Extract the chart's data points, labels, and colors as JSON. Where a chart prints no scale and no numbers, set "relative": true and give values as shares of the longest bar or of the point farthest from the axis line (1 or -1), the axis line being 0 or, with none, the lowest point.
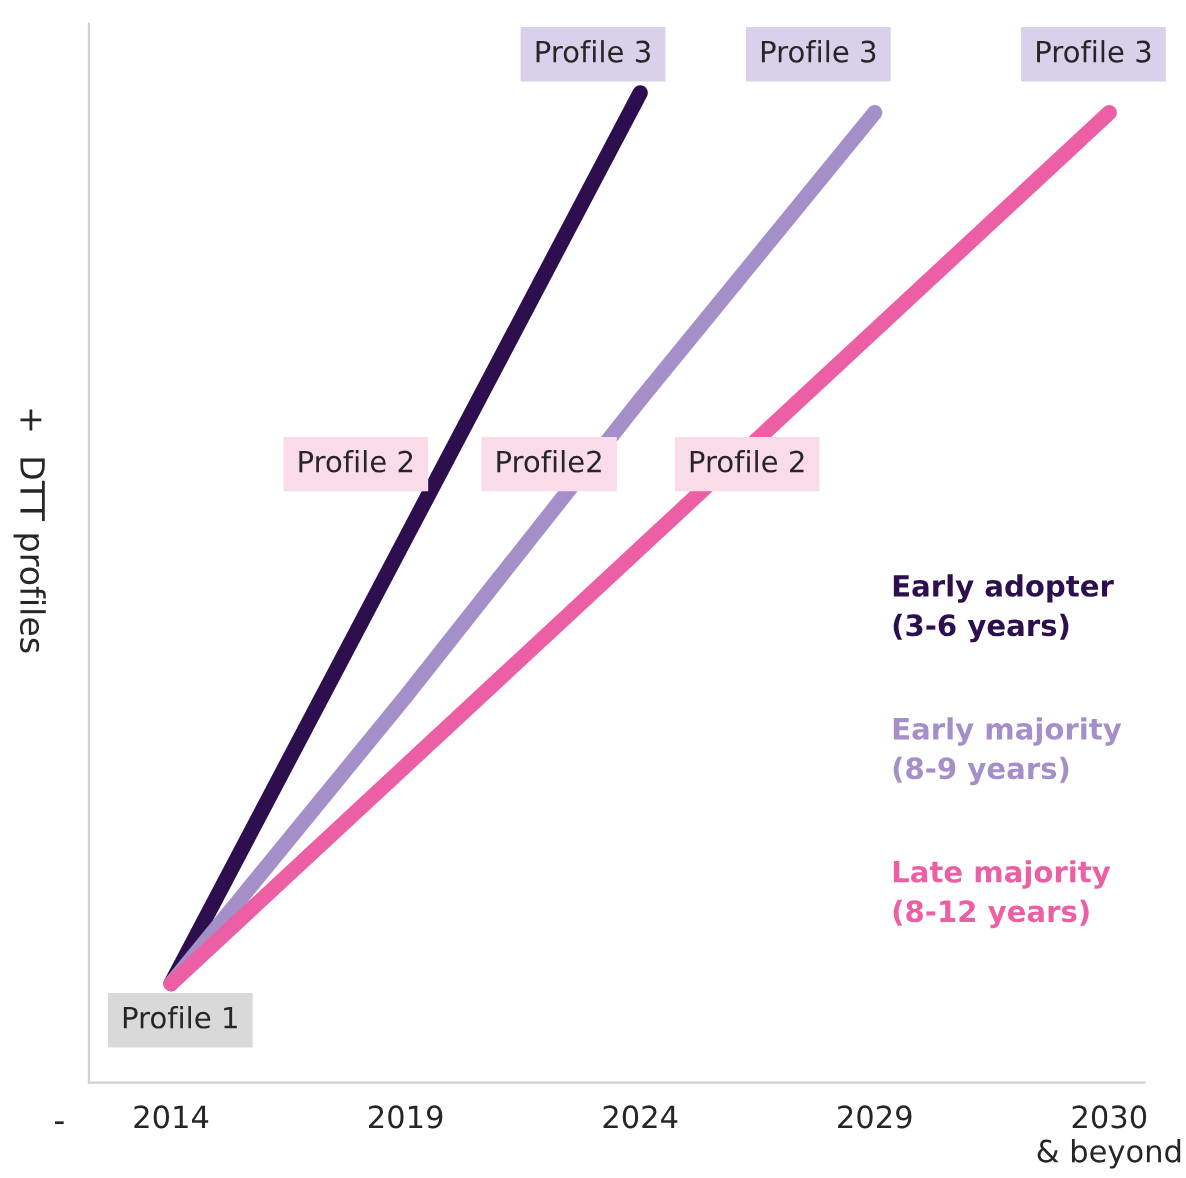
{
  "chart_data": {
    "type": "line",
    "relative": true,
    "ylabel": "+  DTT profiles",
    "categories": [
      "2014",
      "2019",
      "2024",
      "2029",
      "2030\n& beyond"
    ],
    "series": [
      {
        "name": "Early adopter\n(3-6 years)",
        "color": "#2d0f4f",
        "values": [
          0.1,
          0.55,
          1,
          null,
          null
        ]
      },
      {
        "name": "Early majority\n(8-9 years)",
        "color": "#a48fc8",
        "values": [
          0.1,
          0.39,
          0.69,
          0.98,
          null
        ]
      },
      {
        "name": "Late majority\n(8-12 years)",
        "color": "#ec5fa4",
        "values": [
          0.1,
          0.32,
          0.54,
          0.76,
          0.98
        ]
      }
    ],
    "annotations": [
      "Profile 1",
      "Profile 2",
      "Profile2",
      "Profile 2",
      "Profile 3",
      "Profile 3",
      "Profile 3",
      "-"
    ],
    "legend": "right",
    "grid": false,
    "line_style": "solid",
    "marker": "none"
  }
}
